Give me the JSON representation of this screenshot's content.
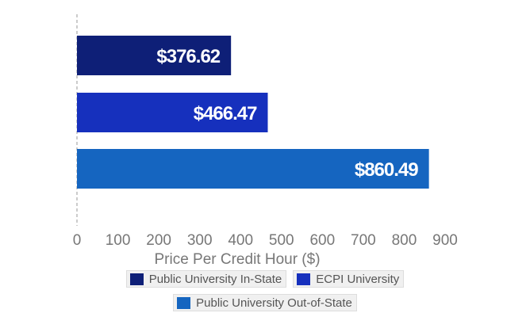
{
  "chart_data": {
    "type": "bar",
    "orientation": "horizontal",
    "categories": [
      "Public University In-State",
      "ECPI University",
      "Public University Out-of-State"
    ],
    "values": [
      376.62,
      466.47,
      860.49
    ],
    "value_labels": [
      "$376.62",
      "$466.47",
      "$860.49"
    ],
    "colors": [
      "#0e1f77",
      "#1630bd",
      "#1565c0"
    ],
    "xlabel": "Price Per Credit Hour ($)",
    "ylabel": "",
    "xlim": [
      0,
      900
    ],
    "xticks": [
      0,
      100,
      200,
      300,
      400,
      500,
      600,
      700,
      800,
      900
    ],
    "grid": false,
    "legend_position": "bottom",
    "legend": [
      {
        "label": "Public University In-State",
        "color": "#0e1f77"
      },
      {
        "label": "ECPI University",
        "color": "#1630bd"
      },
      {
        "label": "Public University Out-of-State",
        "color": "#1565c0"
      }
    ]
  }
}
